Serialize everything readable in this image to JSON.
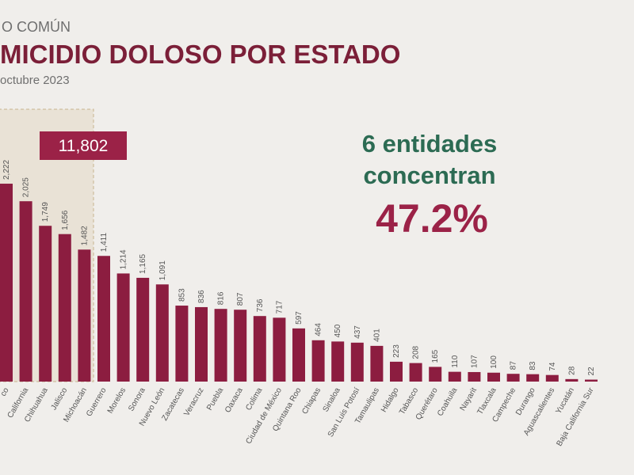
{
  "chart_data": {
    "type": "bar",
    "supertitle": "O COMÚN",
    "title": "MICIDIO DOLOSO POR ESTADO",
    "subtitle": "octubre 2023",
    "categories": [
      "co",
      "California",
      "Chihuahua",
      "Jalisco",
      "Michoacán",
      "Guerrero",
      "Morelos",
      "Sonora",
      "Nuevo León",
      "Zacatecas",
      "Veracruz",
      "Puebla",
      "Oaxaca",
      "Colima",
      "Ciudad de México",
      "Quintana Roo",
      "Chiapas",
      "Sinaloa",
      "San Luis Potosí",
      "Tamaulipas",
      "Hidalgo",
      "Tabasco",
      "Querétaro",
      "Coahuila",
      "Nayarit",
      "Tlaxcala",
      "Campeche",
      "Durango",
      "Aguascalientes",
      "Yucatán",
      "Baja California Sur"
    ],
    "values": [
      2222,
      2025,
      1749,
      1656,
      1482,
      1411,
      1214,
      1165,
      1091,
      853,
      836,
      816,
      807,
      736,
      717,
      597,
      464,
      450,
      437,
      401,
      223,
      208,
      165,
      110,
      107,
      100,
      87,
      83,
      74,
      28,
      22
    ],
    "value_labels": [
      "2,222",
      "2,025",
      "1,749",
      "1,656",
      "1,482",
      "1,411",
      "1,214",
      "1,165",
      "1,091",
      "853",
      "836",
      "816",
      "807",
      "736",
      "717",
      "597",
      "464",
      "450",
      "437",
      "401",
      "223",
      "208",
      "165",
      "110",
      "107",
      "100",
      "87",
      "83",
      "74",
      "28",
      "22"
    ],
    "color": "#8c1d40",
    "highlight_total": "11,802",
    "annotation_line1": "6 entidades",
    "annotation_line2": "concentran",
    "annotation_share": "47.2%"
  }
}
